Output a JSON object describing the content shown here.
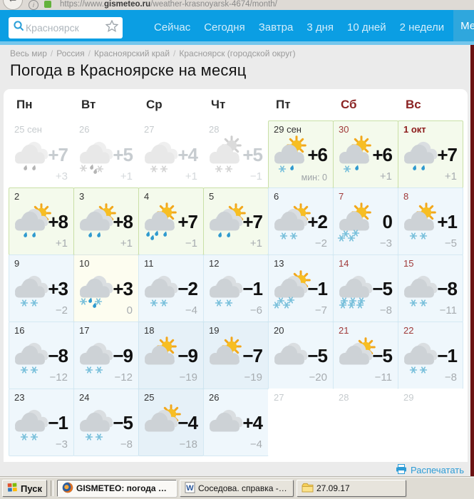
{
  "browser": {
    "url_prefix": "https://www.",
    "url_host": "gismeteo.ru",
    "url_path": "/weather-krasnoyarsk-4674/month/"
  },
  "nav": {
    "search_placeholder": "Красноярск",
    "tabs": [
      "Сейчас",
      "Сегодня",
      "Завтра",
      "3 дня",
      "10 дней",
      "2 недели"
    ],
    "active_tab": "Месяц"
  },
  "breadcrumb": [
    "Весь мир",
    "Россия",
    "Красноярский край",
    "Красноярск (городской округ)"
  ],
  "page": {
    "title": "Погода в Красноярске на месяц",
    "print_label": "Распечатать"
  },
  "colors": {
    "nav_blue": "#0B9EE3",
    "nav_active_blue": "#2FA7DD",
    "weekend_red": "#8B2323",
    "link_blue": "#2E9CD6",
    "green_cell": "#F4FAEC",
    "blue_cell": "#EFF7FC",
    "edge_stripe": "#6B1212"
  },
  "calendar": {
    "weekdays": [
      {
        "label": "Пн",
        "weekend": false
      },
      {
        "label": "Вт",
        "weekend": false
      },
      {
        "label": "Ср",
        "weekend": false
      },
      {
        "label": "Чт",
        "weekend": false
      },
      {
        "label": "Пт",
        "weekend": false
      },
      {
        "label": "Сб",
        "weekend": true
      },
      {
        "label": "Вс",
        "weekend": true
      }
    ],
    "cells": [
      {
        "date": "25 сен",
        "date_color": "grey",
        "variant": "past",
        "icon": "clouds",
        "precip": "rain2",
        "tmax": "+7",
        "tmin": "+3"
      },
      {
        "date": "26",
        "date_color": "grey",
        "variant": "past",
        "icon": "clouds",
        "precip": "mix3",
        "tmax": "+5",
        "tmin": "+1"
      },
      {
        "date": "27",
        "date_color": "grey",
        "variant": "past",
        "icon": "clouds",
        "precip": "snow2",
        "tmax": "+4",
        "tmin": "+1"
      },
      {
        "date": "28",
        "date_color": "grey",
        "variant": "past",
        "icon": "sun-cloud",
        "precip": "snow2",
        "tmax": "+5",
        "tmin": "−1"
      },
      {
        "date": "29 сен",
        "date_color": "black",
        "variant": "green",
        "icon": "sun-cloud",
        "precip": "mix2",
        "tmax": "+6",
        "tmin": "мин: 0",
        "tmin_small": true
      },
      {
        "date": "30",
        "date_color": "red",
        "variant": "green",
        "icon": "sun-cloud",
        "precip": "mix2",
        "tmax": "+6",
        "tmin": "+1"
      },
      {
        "date": "1 окт",
        "date_color": "holiday",
        "variant": "green",
        "icon": "clouds",
        "precip": "rain2",
        "tmax": "+7",
        "tmin": "+1"
      },
      {
        "date": "2",
        "date_color": "black",
        "variant": "green",
        "icon": "sun-clouds",
        "precip": "rain2",
        "tmax": "+8",
        "tmin": "+1"
      },
      {
        "date": "3",
        "date_color": "black",
        "variant": "green",
        "icon": "sun-clouds",
        "precip": "rain2",
        "tmax": "+8",
        "tmin": "+1"
      },
      {
        "date": "4",
        "date_color": "black",
        "variant": "green",
        "icon": "sun-cloud",
        "precip": "rain4",
        "tmax": "+7",
        "tmin": "−1"
      },
      {
        "date": "5",
        "date_color": "black",
        "variant": "green",
        "icon": "sun-clouds",
        "precip": "rain2",
        "tmax": "+7",
        "tmin": "+1"
      },
      {
        "date": "6",
        "date_color": "black",
        "variant": "blue",
        "icon": "sun-clouds",
        "precip": "snow2",
        "tmax": "+2",
        "tmin": "−2"
      },
      {
        "date": "7",
        "date_color": "red",
        "variant": "blue",
        "icon": "sun-cloud",
        "precip": "snow4",
        "tmax": "0",
        "tmin": "−3"
      },
      {
        "date": "8",
        "date_color": "red",
        "variant": "blue",
        "icon": "sun-cloud",
        "precip": "snow2",
        "tmax": "+1",
        "tmin": "−5"
      },
      {
        "date": "9",
        "date_color": "black",
        "variant": "blue",
        "icon": "clouds",
        "precip": "snow2",
        "tmax": "+3",
        "tmin": "−2"
      },
      {
        "date": "10",
        "date_color": "black",
        "variant": "ivory",
        "icon": "clouds",
        "precip": "mix4",
        "tmax": "+3",
        "tmin": "0"
      },
      {
        "date": "11",
        "date_color": "black",
        "variant": "blue",
        "icon": "clouds",
        "precip": "snow2",
        "tmax": "−2",
        "tmin": "−4"
      },
      {
        "date": "12",
        "date_color": "black",
        "variant": "blue",
        "icon": "clouds",
        "precip": "snow2",
        "tmax": "−1",
        "tmin": "−6"
      },
      {
        "date": "13",
        "date_color": "black",
        "variant": "blue",
        "icon": "sun-clouds",
        "precip": "snow4",
        "tmax": "−1",
        "tmin": "−7"
      },
      {
        "date": "14",
        "date_color": "red",
        "variant": "blue",
        "icon": "clouds",
        "precip": "snow6",
        "tmax": "−5",
        "tmin": "−8"
      },
      {
        "date": "15",
        "date_color": "red",
        "variant": "blue",
        "icon": "clouds",
        "precip": "snow2",
        "tmax": "−8",
        "tmin": "−11"
      },
      {
        "date": "16",
        "date_color": "black",
        "variant": "blue",
        "icon": "clouds",
        "precip": "snow2",
        "tmax": "−8",
        "tmin": "−12"
      },
      {
        "date": "17",
        "date_color": "black",
        "variant": "blue",
        "icon": "clouds",
        "precip": "snow2",
        "tmax": "−9",
        "tmin": "−12"
      },
      {
        "date": "18",
        "date_color": "black",
        "variant": "blue2",
        "icon": "sun-cloud",
        "precip": "none",
        "tmax": "−9",
        "tmin": "−19"
      },
      {
        "date": "19",
        "date_color": "black",
        "variant": "blue2",
        "icon": "sun-cloud",
        "precip": "none",
        "tmax": "−7",
        "tmin": "−19"
      },
      {
        "date": "20",
        "date_color": "black",
        "variant": "blue",
        "icon": "clouds",
        "precip": "none",
        "tmax": "−5",
        "tmin": "−20"
      },
      {
        "date": "21",
        "date_color": "red",
        "variant": "blue",
        "icon": "sun-clouds",
        "precip": "none",
        "tmax": "−5",
        "tmin": "−11"
      },
      {
        "date": "22",
        "date_color": "red",
        "variant": "blue",
        "icon": "clouds",
        "precip": "snow2",
        "tmax": "−1",
        "tmin": "−8"
      },
      {
        "date": "23",
        "date_color": "black",
        "variant": "blue",
        "icon": "clouds",
        "precip": "snow2",
        "tmax": "−1",
        "tmin": "−3"
      },
      {
        "date": "24",
        "date_color": "black",
        "variant": "blue",
        "icon": "clouds",
        "precip": "snow2",
        "tmax": "−5",
        "tmin": "−8"
      },
      {
        "date": "25",
        "date_color": "black",
        "variant": "blue2",
        "icon": "sun-clouds",
        "precip": "none",
        "tmax": "−4",
        "tmin": "−18"
      },
      {
        "date": "26",
        "date_color": "black",
        "variant": "blue",
        "icon": "clouds",
        "precip": "none",
        "tmax": "+4",
        "tmin": "−4"
      },
      {
        "date": "27",
        "date_color": "grey",
        "variant": "next",
        "icon": "none",
        "precip": "none",
        "tmax": "",
        "tmin": ""
      },
      {
        "date": "28",
        "date_color": "grey",
        "variant": "next",
        "icon": "none",
        "precip": "none",
        "tmax": "",
        "tmin": ""
      },
      {
        "date": "29",
        "date_color": "grey",
        "variant": "next",
        "icon": "none",
        "precip": "none",
        "tmax": "",
        "tmin": ""
      }
    ]
  },
  "taskbar": {
    "start_label": "Пуск",
    "buttons": [
      {
        "icon": "firefox-icon",
        "label": "GISMETEO: погода в ...",
        "active": true
      },
      {
        "icon": "word-icon",
        "label": "Соседова. справка - Mi...",
        "active": false
      },
      {
        "icon": "folder-icon",
        "label": "27.09.17",
        "active": false
      }
    ]
  }
}
